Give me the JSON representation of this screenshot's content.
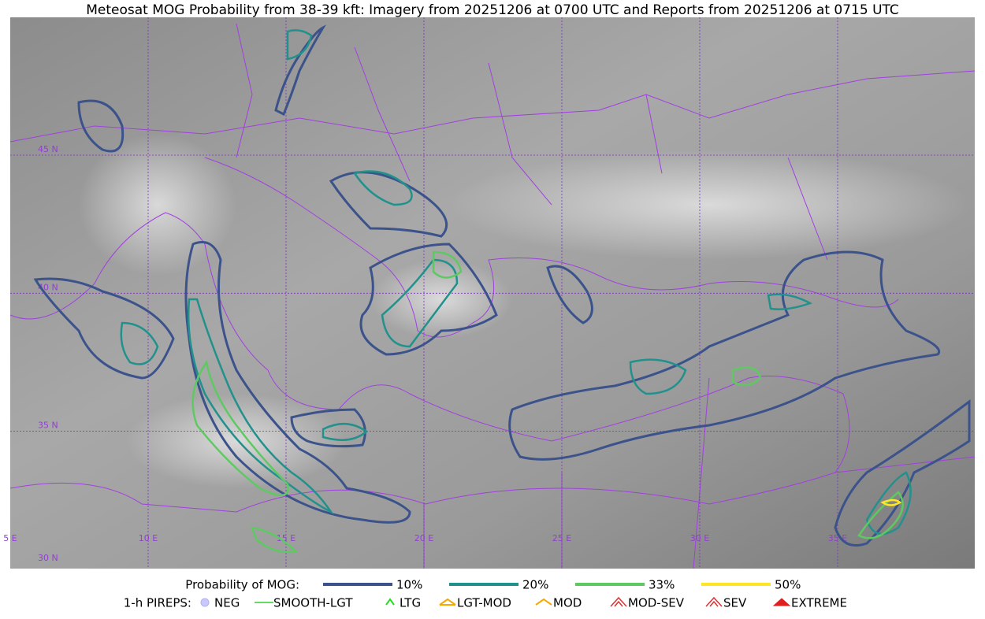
{
  "title": "Meteosat MOG Probability from 38-39 kft: Imagery from 20251206 at 0700 UTC and Reports from 20251206 at 0715 UTC",
  "map": {
    "lat_labels": [
      "45 N",
      "40 N",
      "35 N",
      "30 N"
    ],
    "lon_labels": [
      "5 E",
      "10 E",
      "15 E",
      "20 E",
      "25 E",
      "30 E",
      "35 E"
    ]
  },
  "legend": {
    "probability": {
      "label": "Probability of MOG:",
      "items": [
        {
          "label": "10%",
          "color": "#3b528b"
        },
        {
          "label": "20%",
          "color": "#21918c"
        },
        {
          "label": "33%",
          "color": "#5ec962"
        },
        {
          "label": "50%",
          "color": "#fde725"
        }
      ]
    },
    "pireps": {
      "label": "1-h PIREPS:",
      "items": [
        "NEG",
        "SMOOTH-LGT",
        "LTG",
        "LGT-MOD",
        "MOD",
        "MOD-SEV",
        "SEV",
        "EXTREME"
      ]
    }
  }
}
